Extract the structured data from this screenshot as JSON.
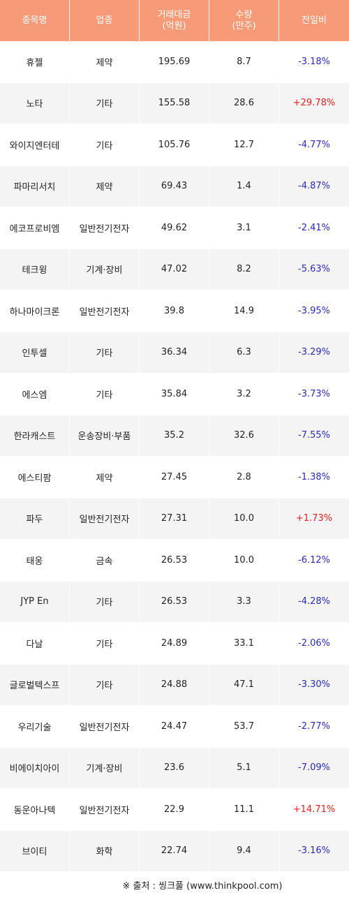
{
  "table": {
    "headers": [
      "종목명",
      "업종",
      "거래대금\n(억원)",
      "수량\n(만주)",
      "전일비"
    ],
    "rows": [
      {
        "name": "휴젤",
        "sector": "제약",
        "amount": "195.69",
        "volume": "8.7",
        "change": "-3.18%",
        "dir": "neg"
      },
      {
        "name": "노타",
        "sector": "기타",
        "amount": "155.58",
        "volume": "28.6",
        "change": "+29.78%",
        "dir": "pos"
      },
      {
        "name": "와이지엔터테",
        "sector": "기타",
        "amount": "105.76",
        "volume": "12.7",
        "change": "-4.77%",
        "dir": "neg"
      },
      {
        "name": "파마리서치",
        "sector": "제약",
        "amount": "69.43",
        "volume": "1.4",
        "change": "-4.87%",
        "dir": "neg"
      },
      {
        "name": "에코프로비엠",
        "sector": "일반전기전자",
        "amount": "49.62",
        "volume": "3.1",
        "change": "-2.41%",
        "dir": "neg"
      },
      {
        "name": "테크윙",
        "sector": "기계·장비",
        "amount": "47.02",
        "volume": "8.2",
        "change": "-5.63%",
        "dir": "neg"
      },
      {
        "name": "하나마이크론",
        "sector": "일반전기전자",
        "amount": "39.8",
        "volume": "14.9",
        "change": "-3.95%",
        "dir": "neg"
      },
      {
        "name": "인투셀",
        "sector": "기타",
        "amount": "36.34",
        "volume": "6.3",
        "change": "-3.29%",
        "dir": "neg"
      },
      {
        "name": "에스엠",
        "sector": "기타",
        "amount": "35.84",
        "volume": "3.2",
        "change": "-3.73%",
        "dir": "neg"
      },
      {
        "name": "한라캐스트",
        "sector": "운송장비·부품",
        "amount": "35.2",
        "volume": "32.6",
        "change": "-7.55%",
        "dir": "neg"
      },
      {
        "name": "에스티팜",
        "sector": "제약",
        "amount": "27.45",
        "volume": "2.8",
        "change": "-1.38%",
        "dir": "neg"
      },
      {
        "name": "파두",
        "sector": "일반전기전자",
        "amount": "27.31",
        "volume": "10.0",
        "change": "+1.73%",
        "dir": "pos"
      },
      {
        "name": "태웅",
        "sector": "금속",
        "amount": "26.53",
        "volume": "10.0",
        "change": "-6.12%",
        "dir": "neg"
      },
      {
        "name": "JYP En",
        "sector": "기타",
        "amount": "26.53",
        "volume": "3.3",
        "change": "-4.28%",
        "dir": "neg"
      },
      {
        "name": "다날",
        "sector": "기타",
        "amount": "24.89",
        "volume": "33.1",
        "change": "-2.06%",
        "dir": "neg"
      },
      {
        "name": "글로벌텍스프",
        "sector": "기타",
        "amount": "24.88",
        "volume": "47.1",
        "change": "-3.30%",
        "dir": "neg"
      },
      {
        "name": "우리기술",
        "sector": "일반전기전자",
        "amount": "24.47",
        "volume": "53.7",
        "change": "-2.77%",
        "dir": "neg"
      },
      {
        "name": "비에이치아이",
        "sector": "기계·장비",
        "amount": "23.6",
        "volume": "5.1",
        "change": "-7.09%",
        "dir": "neg"
      },
      {
        "name": "동운아나텍",
        "sector": "일반전기전자",
        "amount": "22.9",
        "volume": "11.1",
        "change": "+14.71%",
        "dir": "pos"
      },
      {
        "name": "브이티",
        "sector": "화학",
        "amount": "22.74",
        "volume": "9.4",
        "change": "-3.16%",
        "dir": "neg"
      }
    ]
  },
  "source": "※ 출처 : 씽크풀 (www.thinkpool.com)",
  "colors": {
    "header_bg": "#f79a77",
    "row_alt_bg": "#f4f4f4",
    "negative": "#2a2ab4",
    "positive": "#e02020"
  }
}
